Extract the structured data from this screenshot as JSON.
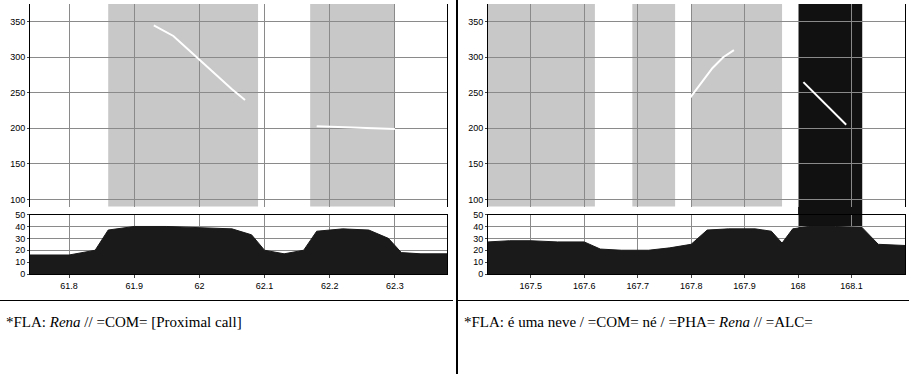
{
  "chart_data": [
    {
      "type": "spectrogram",
      "caption": "*FLA: Rena // =COM= [Proximal call]",
      "caption_italic": "Rena",
      "xlim": [
        61.74,
        62.38
      ],
      "xticks": [
        61.8,
        61.9,
        62,
        62.1,
        62.2,
        62.3
      ],
      "ylim": [
        90,
        375
      ],
      "yticks": [
        100,
        150,
        200,
        250,
        300,
        350
      ],
      "y2lim": [
        0,
        50
      ],
      "y2ticks": [
        0,
        10,
        20,
        30,
        40,
        50
      ],
      "grid": true,
      "voiced": [
        [
          61.86,
          62.09
        ],
        [
          62.17,
          62.3
        ]
      ],
      "dark_band": null,
      "series": [
        {
          "type": "line",
          "axis": "y",
          "color": "#ffffff",
          "x": [
            61.93,
            61.96,
            61.99,
            62.02,
            62.05,
            62.07,
            62.12,
            62.18,
            62.21,
            62.24,
            62.27,
            62.3
          ],
          "values": [
            345,
            330,
            305,
            280,
            255,
            240,
            null,
            203,
            202,
            200,
            200,
            199
          ]
        },
        {
          "type": "area",
          "axis": "y2",
          "color": "#1a1a1a",
          "x": [
            61.74,
            61.8,
            61.84,
            61.86,
            61.9,
            61.95,
            62.0,
            62.05,
            62.08,
            62.1,
            62.13,
            62.16,
            62.18,
            62.22,
            62.26,
            62.29,
            62.31,
            62.34,
            62.38
          ],
          "values": [
            16,
            16,
            20,
            37,
            40,
            40,
            39,
            38,
            33,
            20,
            17,
            20,
            36,
            38,
            37,
            30,
            18,
            17,
            17
          ]
        }
      ]
    },
    {
      "type": "spectrogram",
      "caption": "*FLA: é uma neve / =COM= né / =PHA= Rena // =ALC=",
      "caption_italic": "Rena",
      "xlim": [
        167.42,
        168.2
      ],
      "xticks": [
        167.5,
        167.6,
        167.7,
        167.8,
        167.9,
        168,
        168.1
      ],
      "ylim": [
        90,
        375
      ],
      "yticks": [
        100,
        150,
        200,
        250,
        300,
        350
      ],
      "y2lim": [
        0,
        50
      ],
      "y2ticks": [
        0,
        10,
        20,
        30,
        40,
        50
      ],
      "grid": true,
      "voiced": [
        [
          167.42,
          167.62
        ],
        [
          167.69,
          167.77
        ],
        [
          167.8,
          167.97
        ]
      ],
      "dark_band": [
        168,
        168.12
      ],
      "series": [
        {
          "type": "line",
          "axis": "y",
          "color": "#ffffff",
          "x": [
            167.78,
            167.8,
            167.82,
            167.84,
            167.86,
            167.88,
            167.95,
            168.01,
            168.03,
            168.05,
            168.07,
            168.09
          ],
          "values": [
            225,
            245,
            265,
            285,
            300,
            310,
            null,
            265,
            250,
            235,
            220,
            205
          ]
        },
        {
          "type": "area",
          "axis": "y2",
          "color": "#1a1a1a",
          "x": [
            167.42,
            167.46,
            167.5,
            167.55,
            167.6,
            167.63,
            167.67,
            167.72,
            167.76,
            167.8,
            167.83,
            167.87,
            167.92,
            167.95,
            167.97,
            167.99,
            168.02,
            168.07,
            168.12,
            168.15,
            168.2
          ],
          "values": [
            27,
            28,
            28,
            27,
            27,
            21,
            20,
            20,
            22,
            25,
            37,
            38,
            38,
            36,
            26,
            38,
            40,
            40,
            39,
            25,
            24
          ]
        }
      ]
    }
  ]
}
